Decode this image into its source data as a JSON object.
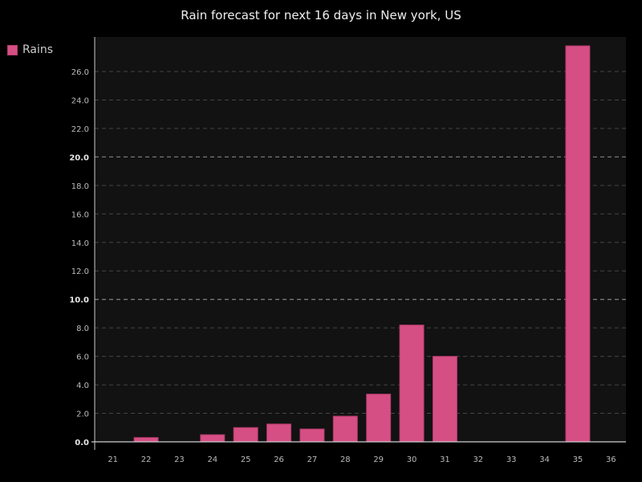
{
  "chart_data": {
    "type": "bar",
    "title": "Rain forecast for next 16 days in New york, US",
    "xlabel": "",
    "ylabel": "",
    "categories": [
      "21",
      "22",
      "23",
      "24",
      "25",
      "26",
      "27",
      "28",
      "29",
      "30",
      "31",
      "32",
      "33",
      "34",
      "35",
      "36"
    ],
    "series": [
      {
        "name": "Rains",
        "color": "#d64f84",
        "values": [
          0,
          0.3,
          0,
          0.5,
          1.0,
          1.25,
          0.9,
          1.8,
          3.35,
          8.2,
          6.0,
          0,
          0,
          0,
          27.8,
          0
        ]
      }
    ],
    "ylim": [
      0,
      28.5
    ],
    "yticks": [
      "0.0",
      "2.0",
      "4.0",
      "6.0",
      "8.0",
      "10.0",
      "12.0",
      "14.0",
      "16.0",
      "18.0",
      "20.0",
      "22.0",
      "24.0",
      "26.0"
    ],
    "grid": true,
    "legend_position": "top-left",
    "plot_background": "#121212",
    "page_background": "#000000"
  }
}
